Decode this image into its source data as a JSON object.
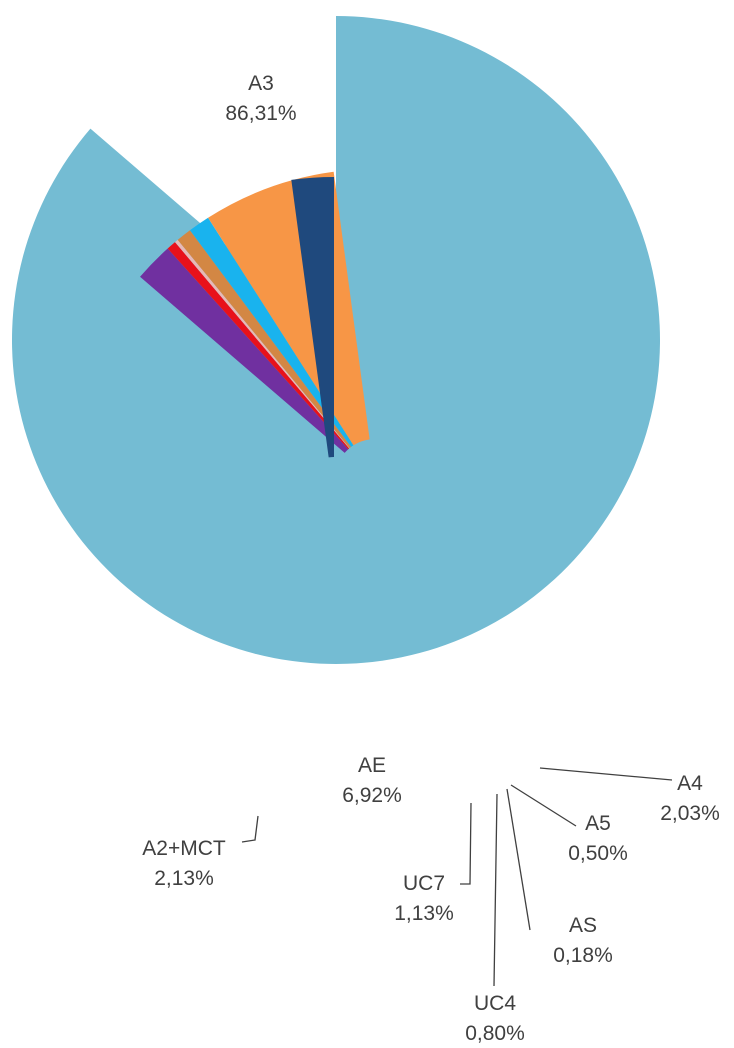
{
  "chart_data": {
    "type": "pie",
    "title": "",
    "slices": [
      {
        "name": "A3",
        "value": 86.31,
        "label_pct": "86,31%",
        "color": "#74BCD3",
        "exploded": true
      },
      {
        "name": "A4",
        "value": 2.03,
        "label_pct": "2,03%",
        "color": "#7030A0"
      },
      {
        "name": "A5",
        "value": 0.5,
        "label_pct": "0,50%",
        "color": "#E8111B"
      },
      {
        "name": "AS",
        "value": 0.18,
        "label_pct": "0,18%",
        "color": "#E6B9B8"
      },
      {
        "name": "UC4",
        "value": 0.8,
        "label_pct": "0,80%",
        "color": "#D38744"
      },
      {
        "name": "UC7",
        "value": 1.13,
        "label_pct": "1,13%",
        "color": "#19B3EE"
      },
      {
        "name": "AE",
        "value": 6.92,
        "label_pct": "6,92%",
        "color": "#F79646"
      },
      {
        "name": "A2+MCT",
        "value": 2.13,
        "label_pct": "2,13%",
        "color": "#1F497D"
      }
    ]
  }
}
